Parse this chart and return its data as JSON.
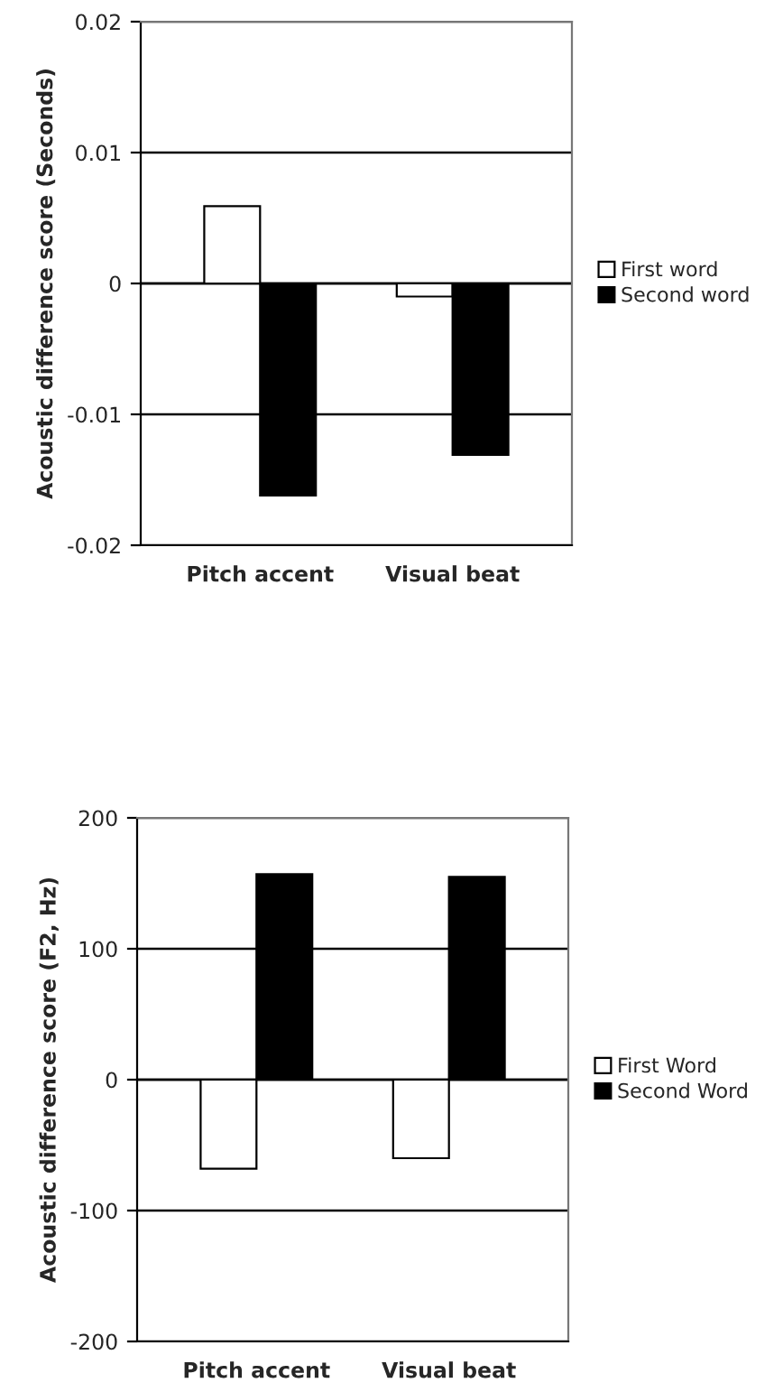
{
  "chart_data": [
    {
      "type": "bar",
      "ylabel": "Acoustic difference score (Seconds)",
      "categories": [
        "Pitch accent",
        "Visual beat"
      ],
      "series": [
        {
          "name": "First word",
          "color": "#ffffff",
          "values": [
            0.0059,
            -0.001
          ]
        },
        {
          "name": "Second word",
          "color": "#000000",
          "values": [
            -0.0162,
            -0.0131
          ]
        }
      ],
      "ylim": [
        -0.02,
        0.02
      ],
      "yticks": [
        -0.02,
        -0.01,
        0,
        0.01,
        0.02
      ],
      "grid": "y",
      "legend": "right"
    },
    {
      "type": "bar",
      "ylabel": "Acoustic difference score (F2, Hz)",
      "categories": [
        "Pitch accent",
        "Visual beat"
      ],
      "series": [
        {
          "name": "First Word",
          "color": "#ffffff",
          "values": [
            -68,
            -60
          ]
        },
        {
          "name": "Second Word",
          "color": "#000000",
          "values": [
            157,
            155
          ]
        }
      ],
      "ylim": [
        -200,
        200
      ],
      "yticks": [
        -200,
        -100,
        0,
        100,
        200
      ],
      "grid": "y",
      "legend": "right"
    }
  ]
}
